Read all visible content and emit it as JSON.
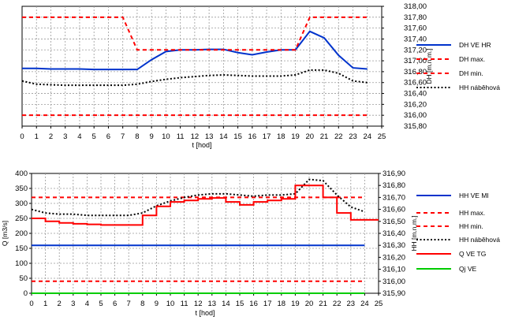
{
  "chart_data": [
    {
      "type": "line",
      "xlabel": "t [hod]",
      "ylabel": "DH [m.n.m.]",
      "xlim": [
        0,
        25
      ],
      "ylim": [
        315.8,
        318.0
      ],
      "x_ticks": [
        "0",
        "1",
        "2",
        "3",
        "4",
        "5",
        "6",
        "7",
        "8",
        "9",
        "10",
        "11",
        "12",
        "13",
        "14",
        "15",
        "16",
        "17",
        "18",
        "19",
        "20",
        "21",
        "22",
        "23",
        "24",
        "25"
      ],
      "y_ticks": [
        "315,80",
        "316,00",
        "316,20",
        "316,40",
        "316,60",
        "316,80",
        "317,00",
        "317,20",
        "317,40",
        "317,60",
        "317,80",
        "318,00"
      ],
      "grid": true,
      "legend_position": "right",
      "series": [
        {
          "name": "DH VE HR",
          "color": "#0033cc",
          "style": "solid",
          "x": [
            0,
            1,
            2,
            3,
            4,
            5,
            6,
            7,
            8,
            9,
            10,
            11,
            12,
            13,
            14,
            15,
            16,
            17,
            18,
            19,
            20,
            21,
            22,
            23,
            24
          ],
          "y": [
            316.86,
            316.86,
            316.85,
            316.85,
            316.85,
            316.84,
            316.84,
            316.84,
            316.84,
            317.02,
            317.17,
            317.2,
            317.2,
            317.21,
            317.21,
            317.15,
            317.11,
            317.16,
            317.2,
            317.2,
            317.54,
            317.42,
            317.1,
            316.87,
            316.85
          ]
        },
        {
          "name": "DH max.",
          "color": "#ff0000",
          "style": "dashed",
          "x": [
            0,
            7,
            8,
            19,
            20,
            24
          ],
          "y": [
            317.8,
            317.8,
            317.2,
            317.2,
            317.8,
            317.8
          ]
        },
        {
          "name": "DH min.",
          "color": "#ff0000",
          "style": "dashed",
          "x": [
            0,
            24
          ],
          "y": [
            316.0,
            316.0
          ]
        },
        {
          "name": "HH náběhová",
          "color": "#000000",
          "style": "dotted",
          "x": [
            0,
            1,
            2,
            3,
            4,
            5,
            6,
            7,
            8,
            9,
            10,
            11,
            12,
            13,
            14,
            15,
            16,
            17,
            18,
            19,
            20,
            21,
            22,
            23,
            24
          ],
          "y": [
            316.63,
            316.57,
            316.56,
            316.55,
            316.55,
            316.55,
            316.55,
            316.55,
            316.57,
            316.62,
            316.66,
            316.69,
            316.71,
            316.73,
            316.74,
            316.73,
            316.72,
            316.72,
            316.72,
            316.74,
            316.83,
            316.83,
            316.77,
            316.63,
            316.6
          ]
        }
      ]
    },
    {
      "type": "line",
      "xlabel": "t [hod]",
      "ylabel": "Q [m3/s]",
      "ylabel_right": "HH [m.n.m.]",
      "xlim": [
        0,
        25
      ],
      "ylim": [
        0,
        400
      ],
      "ylim_right": [
        315.9,
        316.9
      ],
      "x_ticks": [
        "0",
        "1",
        "2",
        "3",
        "4",
        "5",
        "6",
        "7",
        "8",
        "9",
        "10",
        "11",
        "12",
        "13",
        "14",
        "15",
        "16",
        "17",
        "18",
        "19",
        "20",
        "21",
        "22",
        "23",
        "24",
        "25"
      ],
      "y_ticks": [
        "0",
        "50",
        "100",
        "150",
        "200",
        "250",
        "300",
        "350",
        "400"
      ],
      "y_ticks_right": [
        "315,90",
        "316,00",
        "316,10",
        "316,20",
        "316,30",
        "316,40",
        "316,50",
        "316,60",
        "316,70",
        "316,80",
        "316,90"
      ],
      "grid": true,
      "legend_position": "right",
      "series": [
        {
          "name": "HH VE MI",
          "axis": "right",
          "color": "#0033cc",
          "style": "solid",
          "x": [
            0,
            24
          ],
          "y": [
            316.3,
            316.3
          ]
        },
        {
          "name": "HH max.",
          "axis": "right",
          "color": "#ff0000",
          "style": "dashed",
          "x": [
            0,
            24
          ],
          "y": [
            316.7,
            316.7
          ]
        },
        {
          "name": "HH min.",
          "axis": "right",
          "color": "#ff0000",
          "style": "dashed",
          "x": [
            0,
            24
          ],
          "y": [
            316.0,
            316.0
          ]
        },
        {
          "name": "HH náběhová",
          "axis": "right",
          "color": "#000000",
          "style": "dotted",
          "x": [
            0,
            1,
            2,
            3,
            4,
            5,
            6,
            7,
            8,
            9,
            10,
            11,
            12,
            13,
            14,
            15,
            16,
            17,
            18,
            19,
            20,
            21,
            22,
            23,
            24
          ],
          "y": [
            316.6,
            316.57,
            316.56,
            316.56,
            316.55,
            316.55,
            316.55,
            316.55,
            316.57,
            316.63,
            316.67,
            316.7,
            316.72,
            316.73,
            316.73,
            316.72,
            316.71,
            316.72,
            316.72,
            316.73,
            316.85,
            316.84,
            316.72,
            316.62,
            316.58
          ]
        },
        {
          "name": "Q VE TG",
          "axis": "left",
          "color": "#ff0000",
          "style": "step",
          "x": [
            0,
            1,
            2,
            3,
            4,
            5,
            6,
            7,
            8,
            9,
            10,
            11,
            12,
            13,
            14,
            15,
            16,
            17,
            18,
            19,
            20,
            21,
            22,
            23,
            24
          ],
          "y": [
            250,
            240,
            235,
            232,
            230,
            228,
            228,
            228,
            260,
            290,
            305,
            310,
            315,
            318,
            305,
            295,
            305,
            310,
            315,
            360,
            360,
            320,
            268,
            245,
            245
          ]
        },
        {
          "name": "Qj VE",
          "axis": "left",
          "color": "#00cc00",
          "style": "solid",
          "x": [
            0,
            24
          ],
          "y": [
            0,
            0
          ]
        }
      ]
    }
  ]
}
